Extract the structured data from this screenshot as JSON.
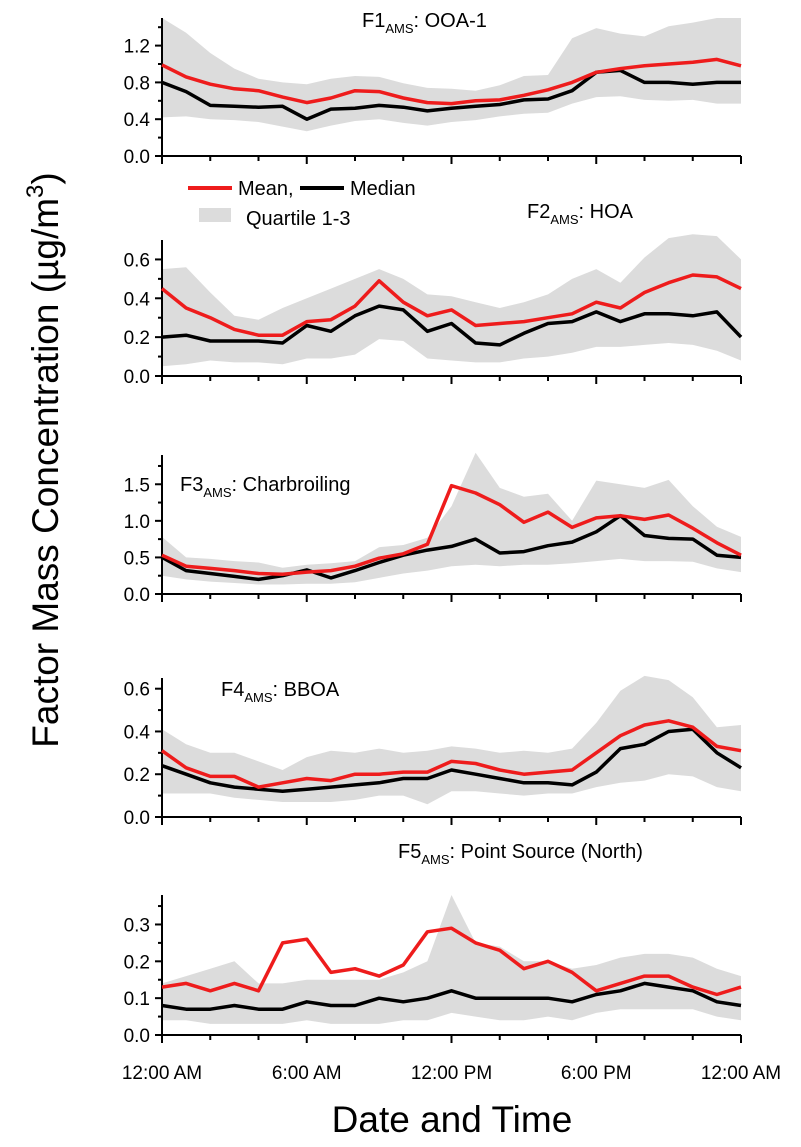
{
  "chart_data": {
    "type": "line",
    "ylabel": "Factor Mass Concentration (µg/m",
    "ylabel_sup": "3",
    "ylabel_close": ")",
    "xlabel": "Date and Time",
    "x_tick_labels": [
      "12:00 AM",
      "6:00 AM",
      "12:00 PM",
      "6:00 PM",
      "12:00 AM"
    ],
    "x_hours": [
      0,
      1,
      2,
      3,
      4,
      5,
      6,
      7,
      8,
      9,
      10,
      11,
      12,
      13,
      14,
      15,
      16,
      17,
      18,
      19,
      20,
      21,
      22,
      23,
      24
    ],
    "colors": {
      "mean": "#ee1c1c",
      "median": "#000000",
      "quartile": "#dcdcdc"
    },
    "legend": {
      "mean": "Mean,",
      "median": "Median",
      "quartile": "Quartile 1-3",
      "placement": "between panels 1 and 2, left"
    },
    "panels": [
      {
        "title_main": "F1",
        "title_sub": "AMS",
        "title_rest": ": OOA-1",
        "ylim": [
          0,
          1.5
        ],
        "yticks": [
          0.0,
          0.4,
          0.8,
          1.2
        ],
        "ytick_labels": [
          "0.0",
          "0.4",
          "0.8",
          "1.2"
        ],
        "mean": [
          0.99,
          0.86,
          0.78,
          0.73,
          0.71,
          0.64,
          0.58,
          0.63,
          0.71,
          0.7,
          0.63,
          0.58,
          0.57,
          0.6,
          0.61,
          0.66,
          0.72,
          0.8,
          0.91,
          0.95,
          0.98,
          1.0,
          1.02,
          1.05,
          0.98
        ],
        "median": [
          0.8,
          0.7,
          0.55,
          0.54,
          0.53,
          0.54,
          0.4,
          0.51,
          0.52,
          0.55,
          0.53,
          0.49,
          0.52,
          0.54,
          0.56,
          0.61,
          0.62,
          0.71,
          0.91,
          0.93,
          0.8,
          0.8,
          0.78,
          0.8,
          0.8
        ],
        "q1": [
          0.42,
          0.43,
          0.4,
          0.39,
          0.37,
          0.32,
          0.27,
          0.33,
          0.38,
          0.4,
          0.36,
          0.33,
          0.37,
          0.39,
          0.43,
          0.46,
          0.47,
          0.57,
          0.64,
          0.65,
          0.61,
          0.6,
          0.61,
          0.57,
          0.57
        ],
        "q3": [
          1.5,
          1.34,
          1.12,
          0.95,
          0.84,
          0.8,
          0.78,
          0.84,
          0.87,
          0.86,
          0.79,
          0.74,
          0.73,
          0.71,
          0.77,
          0.87,
          0.88,
          1.28,
          1.39,
          1.33,
          1.3,
          1.41,
          1.45,
          1.5,
          1.5
        ]
      },
      {
        "title_main": "F2",
        "title_sub": "AMS",
        "title_rest": ": HOA",
        "ylim": [
          0,
          0.7
        ],
        "yticks": [
          0.0,
          0.2,
          0.4,
          0.6
        ],
        "ytick_labels": [
          "0.0",
          "0.2",
          "0.4",
          "0.6"
        ],
        "mean": [
          0.45,
          0.35,
          0.3,
          0.24,
          0.21,
          0.21,
          0.28,
          0.29,
          0.36,
          0.49,
          0.38,
          0.31,
          0.34,
          0.26,
          0.27,
          0.28,
          0.3,
          0.32,
          0.38,
          0.35,
          0.43,
          0.48,
          0.52,
          0.51,
          0.45
        ],
        "median": [
          0.2,
          0.21,
          0.18,
          0.18,
          0.18,
          0.17,
          0.26,
          0.23,
          0.31,
          0.36,
          0.34,
          0.23,
          0.27,
          0.17,
          0.16,
          0.22,
          0.27,
          0.28,
          0.33,
          0.28,
          0.32,
          0.32,
          0.31,
          0.33,
          0.2
        ],
        "q1": [
          0.05,
          0.06,
          0.08,
          0.07,
          0.07,
          0.06,
          0.09,
          0.09,
          0.11,
          0.19,
          0.18,
          0.09,
          0.08,
          0.07,
          0.07,
          0.09,
          0.1,
          0.12,
          0.15,
          0.15,
          0.16,
          0.17,
          0.16,
          0.13,
          0.08
        ],
        "q3": [
          0.55,
          0.56,
          0.43,
          0.31,
          0.29,
          0.35,
          0.4,
          0.45,
          0.5,
          0.55,
          0.5,
          0.42,
          0.41,
          0.38,
          0.35,
          0.38,
          0.42,
          0.5,
          0.55,
          0.48,
          0.61,
          0.71,
          0.73,
          0.72,
          0.6
        ]
      },
      {
        "title_main": "F3",
        "title_sub": "AMS",
        "title_rest": ": Charbroiling",
        "ylim": [
          0,
          1.9
        ],
        "yticks": [
          0.0,
          0.5,
          1.0,
          1.5
        ],
        "ytick_labels": [
          "0.0",
          "0.5",
          "1.0",
          "1.5"
        ],
        "mean": [
          0.53,
          0.38,
          0.35,
          0.32,
          0.28,
          0.27,
          0.3,
          0.32,
          0.38,
          0.49,
          0.55,
          0.68,
          1.48,
          1.38,
          1.22,
          0.98,
          1.12,
          0.91,
          1.04,
          1.07,
          1.02,
          1.08,
          0.9,
          0.7,
          0.53
        ],
        "median": [
          0.5,
          0.32,
          0.28,
          0.24,
          0.2,
          0.25,
          0.33,
          0.22,
          0.32,
          0.43,
          0.53,
          0.6,
          0.65,
          0.75,
          0.56,
          0.58,
          0.66,
          0.71,
          0.85,
          1.07,
          0.8,
          0.76,
          0.75,
          0.53,
          0.5
        ],
        "q1": [
          0.25,
          0.2,
          0.17,
          0.15,
          0.13,
          0.13,
          0.14,
          0.14,
          0.16,
          0.22,
          0.28,
          0.32,
          0.38,
          0.4,
          0.38,
          0.4,
          0.4,
          0.42,
          0.45,
          0.48,
          0.45,
          0.45,
          0.44,
          0.35,
          0.3
        ],
        "q3": [
          0.78,
          0.5,
          0.48,
          0.45,
          0.43,
          0.36,
          0.4,
          0.42,
          0.45,
          0.64,
          0.67,
          0.77,
          1.2,
          1.93,
          1.45,
          1.33,
          1.37,
          1.0,
          1.55,
          1.5,
          1.45,
          1.56,
          1.2,
          0.92,
          0.78
        ]
      },
      {
        "title_main": "F4",
        "title_sub": "AMS",
        "title_rest": ": BBOA",
        "ylim": [
          0,
          0.65
        ],
        "yticks": [
          0.0,
          0.2,
          0.4,
          0.6
        ],
        "ytick_labels": [
          "0.0",
          "0.2",
          "0.4",
          "0.6"
        ],
        "mean": [
          0.31,
          0.23,
          0.19,
          0.19,
          0.14,
          0.16,
          0.18,
          0.17,
          0.2,
          0.2,
          0.21,
          0.21,
          0.26,
          0.25,
          0.22,
          0.2,
          0.21,
          0.22,
          0.3,
          0.38,
          0.43,
          0.45,
          0.42,
          0.33,
          0.31
        ],
        "median": [
          0.24,
          0.2,
          0.16,
          0.14,
          0.13,
          0.12,
          0.13,
          0.14,
          0.15,
          0.16,
          0.18,
          0.18,
          0.22,
          0.2,
          0.18,
          0.16,
          0.16,
          0.15,
          0.21,
          0.32,
          0.34,
          0.4,
          0.41,
          0.3,
          0.23
        ],
        "q1": [
          0.11,
          0.11,
          0.11,
          0.09,
          0.08,
          0.07,
          0.07,
          0.07,
          0.08,
          0.1,
          0.1,
          0.06,
          0.12,
          0.12,
          0.11,
          0.1,
          0.11,
          0.11,
          0.14,
          0.16,
          0.17,
          0.2,
          0.19,
          0.14,
          0.12
        ],
        "q3": [
          0.41,
          0.34,
          0.3,
          0.3,
          0.26,
          0.22,
          0.28,
          0.31,
          0.3,
          0.32,
          0.3,
          0.31,
          0.33,
          0.32,
          0.3,
          0.31,
          0.3,
          0.32,
          0.44,
          0.59,
          0.66,
          0.64,
          0.56,
          0.42,
          0.43
        ]
      },
      {
        "title_main": "F5",
        "title_sub": "AMS",
        "title_rest": ": Point Source (North)",
        "ylim": [
          0,
          0.38
        ],
        "yticks": [
          0.0,
          0.1,
          0.2,
          0.3
        ],
        "ytick_labels": [
          "0.0",
          "0.1",
          "0.2",
          "0.3"
        ],
        "mean": [
          0.13,
          0.14,
          0.12,
          0.14,
          0.12,
          0.25,
          0.26,
          0.17,
          0.18,
          0.16,
          0.19,
          0.28,
          0.29,
          0.25,
          0.23,
          0.18,
          0.2,
          0.17,
          0.12,
          0.14,
          0.16,
          0.16,
          0.13,
          0.11,
          0.13
        ],
        "median": [
          0.08,
          0.07,
          0.07,
          0.08,
          0.07,
          0.07,
          0.09,
          0.08,
          0.08,
          0.1,
          0.09,
          0.1,
          0.12,
          0.1,
          0.1,
          0.1,
          0.1,
          0.09,
          0.11,
          0.12,
          0.14,
          0.13,
          0.12,
          0.09,
          0.08
        ],
        "q1": [
          0.04,
          0.04,
          0.03,
          0.03,
          0.03,
          0.03,
          0.04,
          0.03,
          0.03,
          0.03,
          0.04,
          0.04,
          0.06,
          0.05,
          0.04,
          0.04,
          0.05,
          0.04,
          0.06,
          0.07,
          0.07,
          0.07,
          0.07,
          0.05,
          0.04
        ],
        "q3": [
          0.14,
          0.16,
          0.18,
          0.2,
          0.14,
          0.14,
          0.15,
          0.15,
          0.15,
          0.15,
          0.17,
          0.2,
          0.38,
          0.25,
          0.24,
          0.2,
          0.2,
          0.18,
          0.19,
          0.21,
          0.22,
          0.22,
          0.21,
          0.18,
          0.16
        ]
      }
    ]
  }
}
